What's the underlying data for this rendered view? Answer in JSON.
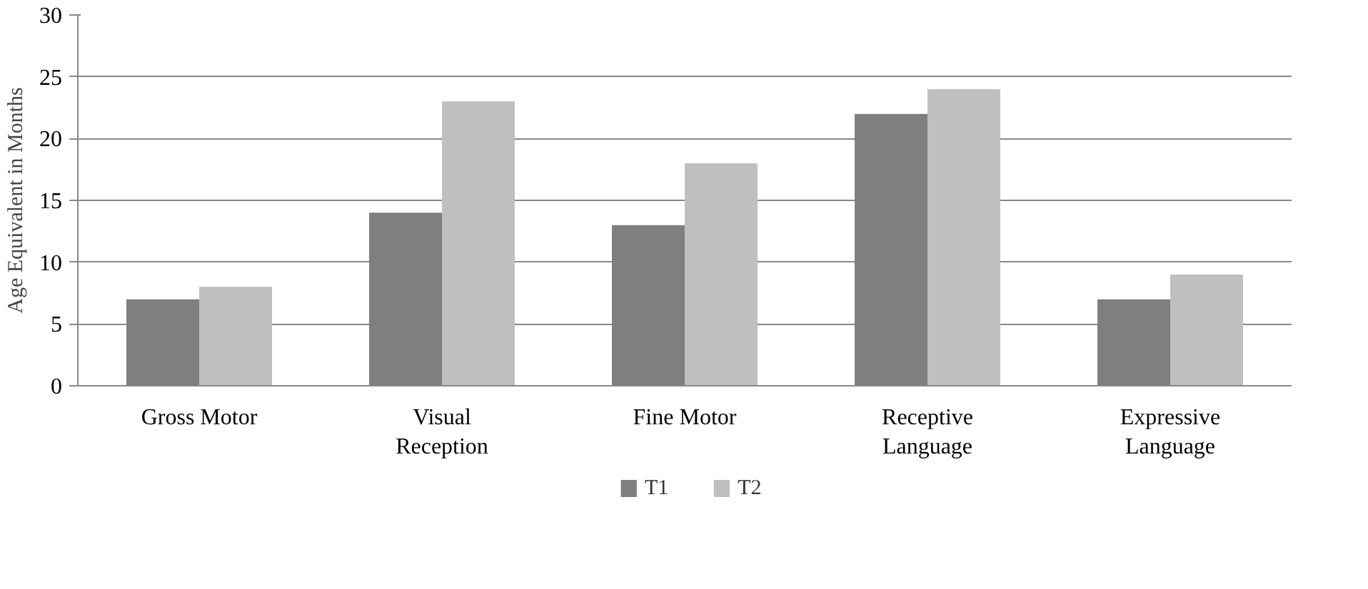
{
  "chart_data": {
    "type": "bar",
    "ylabel": "Age Equivalent in Months",
    "categories": [
      "Gross Motor",
      "Visual Reception",
      "Fine Motor",
      "Receptive Language",
      "Expressive Language"
    ],
    "series": [
      {
        "name": "T1",
        "color": "#7f7f7f",
        "values": [
          7,
          14,
          13,
          22,
          7
        ]
      },
      {
        "name": "T2",
        "color": "#bfbfbf",
        "values": [
          8,
          23,
          18,
          24,
          9
        ]
      }
    ],
    "ylim": [
      0,
      30
    ],
    "yticks": [
      0,
      5,
      10,
      15,
      20,
      25,
      30
    ],
    "grid": "y",
    "legend": "bottom"
  }
}
